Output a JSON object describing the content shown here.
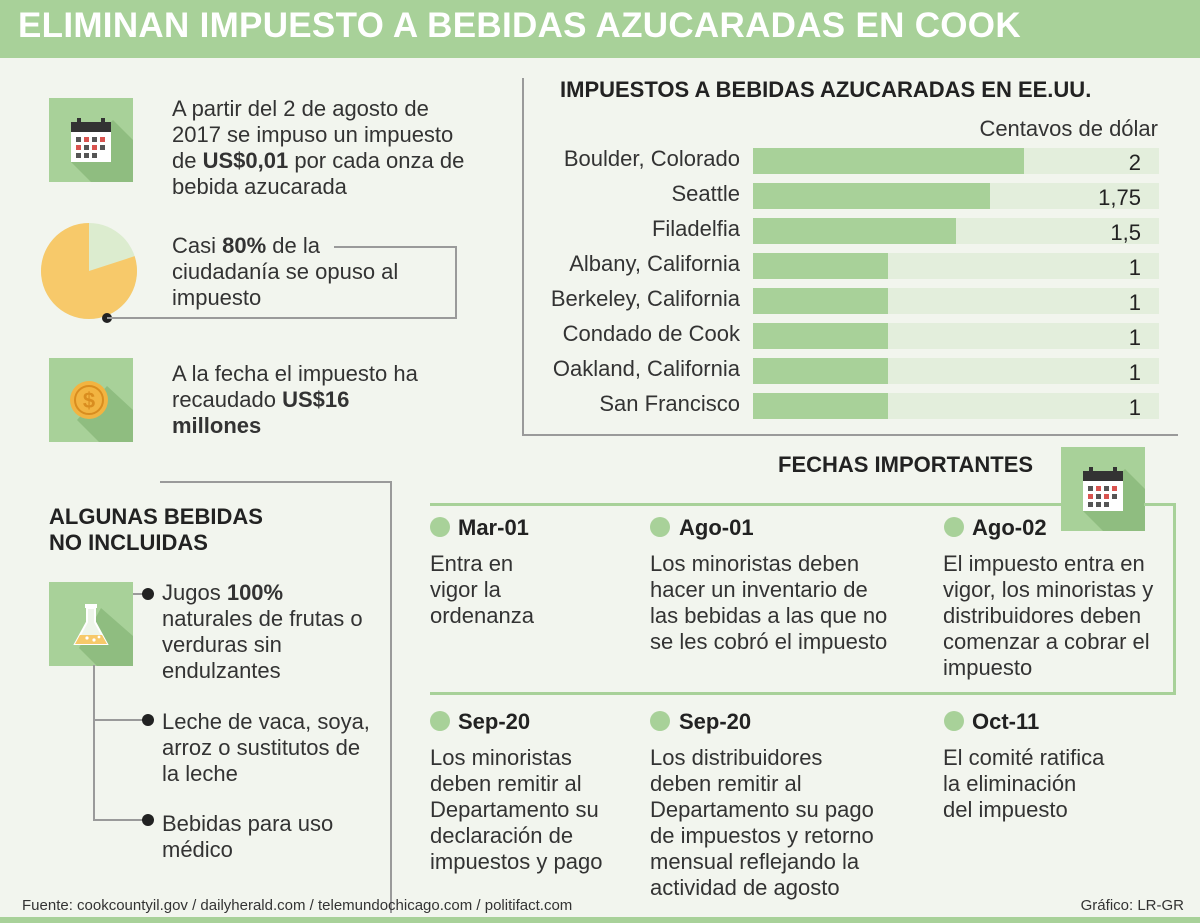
{
  "title": "ELIMINAN IMPUESTO A BEBIDAS AZUCARADAS EN COOK",
  "facts": {
    "tax": {
      "line1": "A partir del 2 de agosto de",
      "line2": "2017 se impuso un impuesto",
      "line3_pre": "de ",
      "line3_bold": "US$0,01",
      "line3_post": " por cada onza de",
      "line4": "bebida azucarada"
    },
    "opposition": {
      "pre": "Casi ",
      "bold": "80%",
      "post": " de la",
      "line2": "ciudadanía se opuso al",
      "line3": "impuesto",
      "percent": 80
    },
    "collected": {
      "line1": "A la fecha el impuesto ha",
      "line2_pre": "recaudado ",
      "line2_bold": "US$16",
      "line3_bold": "millones"
    }
  },
  "chart_data": {
    "type": "bar",
    "orientation": "horizontal",
    "title": "IMPUESTOS A BEBIDAS AZUCARADAS EN EE.UU.",
    "unit_label": "Centavos de dólar",
    "xlim": [
      0,
      3
    ],
    "categories": [
      "Boulder, Colorado",
      "Seattle",
      "Filadelfia",
      "Albany, California",
      "Berkeley, California",
      "Condado de Cook",
      "Oakland, California",
      "San Francisco"
    ],
    "values": [
      2,
      1.75,
      1.5,
      1,
      1,
      1,
      1,
      1
    ],
    "value_labels": [
      "2",
      "1,75",
      "1,5",
      "1",
      "1",
      "1",
      "1",
      "1"
    ],
    "colors": {
      "fill": "#a8d199",
      "track": "#e3eedc"
    }
  },
  "not_included": {
    "title_line1": "ALGUNAS BEBIDAS",
    "title_line2": "NO INCLUIDAS",
    "items": [
      {
        "pre": "Jugos ",
        "bold": "100%",
        "line2": "naturales de frutas o",
        "line3": "verduras sin",
        "line4": "endulzantes"
      },
      {
        "line1": "Leche de vaca, soya,",
        "line2": "arroz o sustitutos de",
        "line3": "la leche"
      },
      {
        "line1": "Bebidas para uso",
        "line2": "médico"
      }
    ]
  },
  "timeline": {
    "title": "FECHAS IMPORTANTES",
    "events": [
      {
        "date": "Mar-01",
        "lines": [
          "Entra en",
          "vigor la",
          "ordenanza"
        ]
      },
      {
        "date": "Ago-01",
        "lines": [
          "Los minoristas deben",
          "hacer un inventario de",
          "las bebidas a las que no",
          "se les cobró el impuesto"
        ]
      },
      {
        "date": "Ago-02",
        "lines": [
          "El impuesto entra en",
          "vigor, los minoristas y",
          "distribuidores deben",
          "comenzar a cobrar el",
          "impuesto"
        ]
      },
      {
        "date": "Sep-20",
        "lines": [
          "Los minoristas",
          "deben remitir al",
          "Departamento su",
          "declaración de",
          "impuestos y pago"
        ]
      },
      {
        "date": "Sep-20",
        "lines": [
          "Los distribuidores",
          "deben remitir al",
          "Departamento su pago",
          "de impuestos y retorno",
          "mensual reflejando la",
          "actividad de agosto"
        ]
      },
      {
        "date": "Oct-11",
        "lines": [
          "El comité ratifica",
          "la eliminación",
          "del impuesto"
        ]
      }
    ]
  },
  "footer": {
    "source": "Fuente: cookcountyil.gov / dailyherald.com / telemundochicago.com / politifact.com",
    "credit": "Gráfico: LR-GR"
  },
  "colors": {
    "accent": "#a8d199",
    "pie_main": "#f7c96a",
    "pie_rest": "#dceccf",
    "coin": "#f2b441"
  }
}
